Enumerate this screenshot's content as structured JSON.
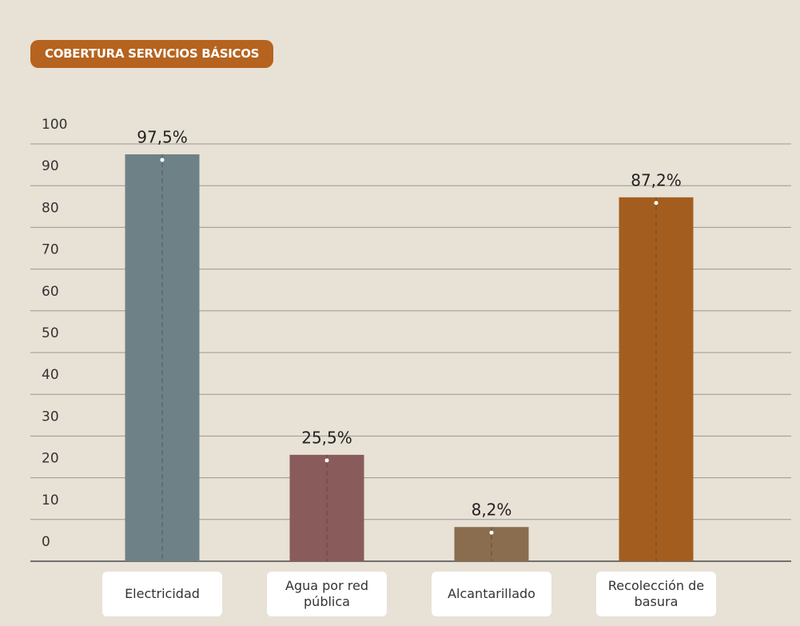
{
  "chart_data": {
    "type": "bar",
    "title": "COBERTURA SERVICIOS BÁSICOS",
    "categories": [
      "Electricidad",
      "Agua por red pública",
      "Alcantarillado",
      "Recolección de basura"
    ],
    "values": [
      97.5,
      25.5,
      8.2,
      87.2
    ],
    "value_labels": [
      "97,5%",
      "25,5%",
      "8,2%",
      "87,2%"
    ],
    "colors": [
      "#6e8187",
      "#8a5b5b",
      "#8a6d4e",
      "#a35e1f"
    ],
    "ylim": [
      0,
      100
    ],
    "yticks": [
      0,
      10,
      20,
      30,
      40,
      50,
      60,
      70,
      80,
      90,
      100
    ],
    "grid": true
  }
}
